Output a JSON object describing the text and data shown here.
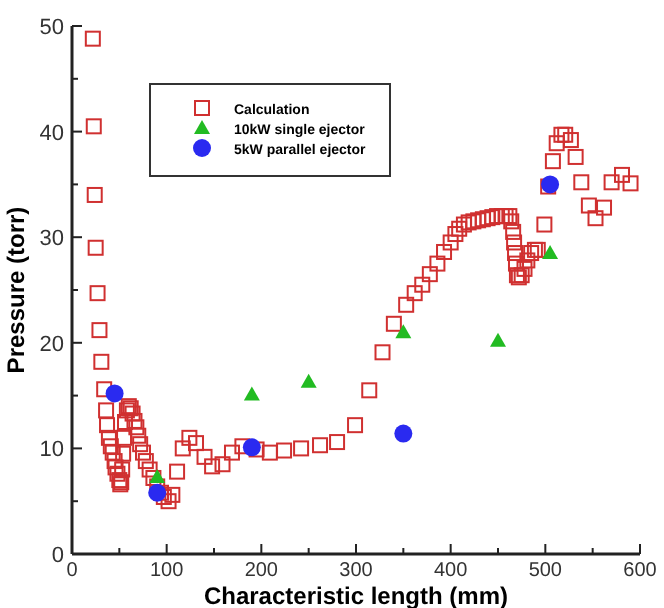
{
  "chart_data": {
    "type": "scatter",
    "xlabel": "Characteristic length (mm)",
    "ylabel": "Pressure (torr)",
    "xlim": [
      0,
      600
    ],
    "ylim": [
      0,
      50
    ],
    "xticks": [
      0,
      {
        "value": 50,
        "label": null
      },
      100,
      {
        "value": 150,
        "label": null
      },
      200,
      {
        "value": 250,
        "label": null
      },
      300,
      {
        "value": 350,
        "label": null
      },
      400,
      {
        "value": 450,
        "label": null
      },
      500,
      {
        "value": 550,
        "label": null
      },
      600
    ],
    "yticks": [
      0,
      {
        "value": 5,
        "label": null
      },
      10,
      {
        "value": 15,
        "label": null
      },
      20,
      {
        "value": 25,
        "label": null
      },
      30,
      {
        "value": 35,
        "label": null
      },
      40,
      {
        "value": 45,
        "label": null
      },
      50
    ],
    "grid": false,
    "legend": "top left",
    "series": [
      {
        "name": "Calculation",
        "color": "#d03030",
        "marker": "square",
        "x": [
          22,
          23,
          24,
          25,
          27,
          29,
          31,
          34,
          36,
          37,
          39,
          41,
          43,
          45,
          46,
          48,
          50,
          51,
          52,
          53,
          54,
          55,
          56,
          58,
          60,
          62,
          64,
          66,
          68,
          70,
          72,
          75,
          78,
          82,
          86,
          90,
          94,
          97,
          102,
          106,
          111,
          117,
          124,
          131,
          140,
          148,
          159,
          169,
          180,
          195,
          209,
          224,
          242,
          262,
          280,
          299,
          314,
          328,
          340,
          353,
          362,
          370,
          378,
          386,
          393,
          400,
          405,
          409,
          414,
          419,
          424,
          429,
          434,
          439,
          444,
          449,
          454,
          458,
          462,
          464,
          466,
          467,
          468,
          469,
          470,
          472,
          475,
          478,
          481,
          485,
          489,
          492,
          499,
          503,
          508,
          512,
          517,
          521,
          527,
          532,
          538,
          546,
          553,
          562,
          570,
          581,
          590
        ],
        "values": [
          48.8,
          40.5,
          34,
          29,
          24.7,
          21.2,
          18.2,
          15.6,
          13.6,
          12.2,
          11,
          10.2,
          9.6,
          8.8,
          8.2,
          7.6,
          7,
          6.6,
          6.8,
          8,
          9.5,
          11,
          12.5,
          13.6,
          14,
          13.8,
          13.3,
          12.6,
          12,
          11.2,
          10.4,
          9.6,
          8.8,
          8,
          7.2,
          6.4,
          5.8,
          5.4,
          5,
          5.6,
          7.8,
          10,
          11,
          10.5,
          9.2,
          8.3,
          8.5,
          9.6,
          10.2,
          9.9,
          9.6,
          9.8,
          10,
          10.3,
          10.6,
          12.2,
          15.5,
          19.1,
          21.8,
          23.6,
          24.7,
          25.5,
          26.5,
          27.5,
          28.6,
          29.5,
          30.3,
          30.8,
          31.2,
          31.4,
          31.5,
          31.6,
          31.7,
          31.8,
          31.9,
          32,
          32,
          32,
          32,
          31.5,
          30.5,
          29.5,
          28.5,
          27.5,
          26.4,
          26.2,
          26.4,
          27,
          27.8,
          28.5,
          28.8,
          28.8,
          31.2,
          34.8,
          37.2,
          38.9,
          39.7,
          39.7,
          39.2,
          37.6,
          35.2,
          33,
          31.8,
          32.8,
          35.2,
          35.9,
          35.1
        ]
      },
      {
        "name": "10kW single ejector",
        "color": "#22bb22",
        "marker": "triangle",
        "x": [
          90,
          190,
          250,
          350,
          450,
          505
        ],
        "values": [
          7.3,
          15.1,
          16.3,
          21,
          20.2,
          28.5
        ]
      },
      {
        "name": "5kW parallel ejector",
        "color": "#2a2af0",
        "marker": "circle",
        "x": [
          45,
          90,
          190,
          350,
          505
        ],
        "values": [
          15.2,
          5.8,
          10.1,
          11.4,
          35
        ]
      }
    ]
  }
}
